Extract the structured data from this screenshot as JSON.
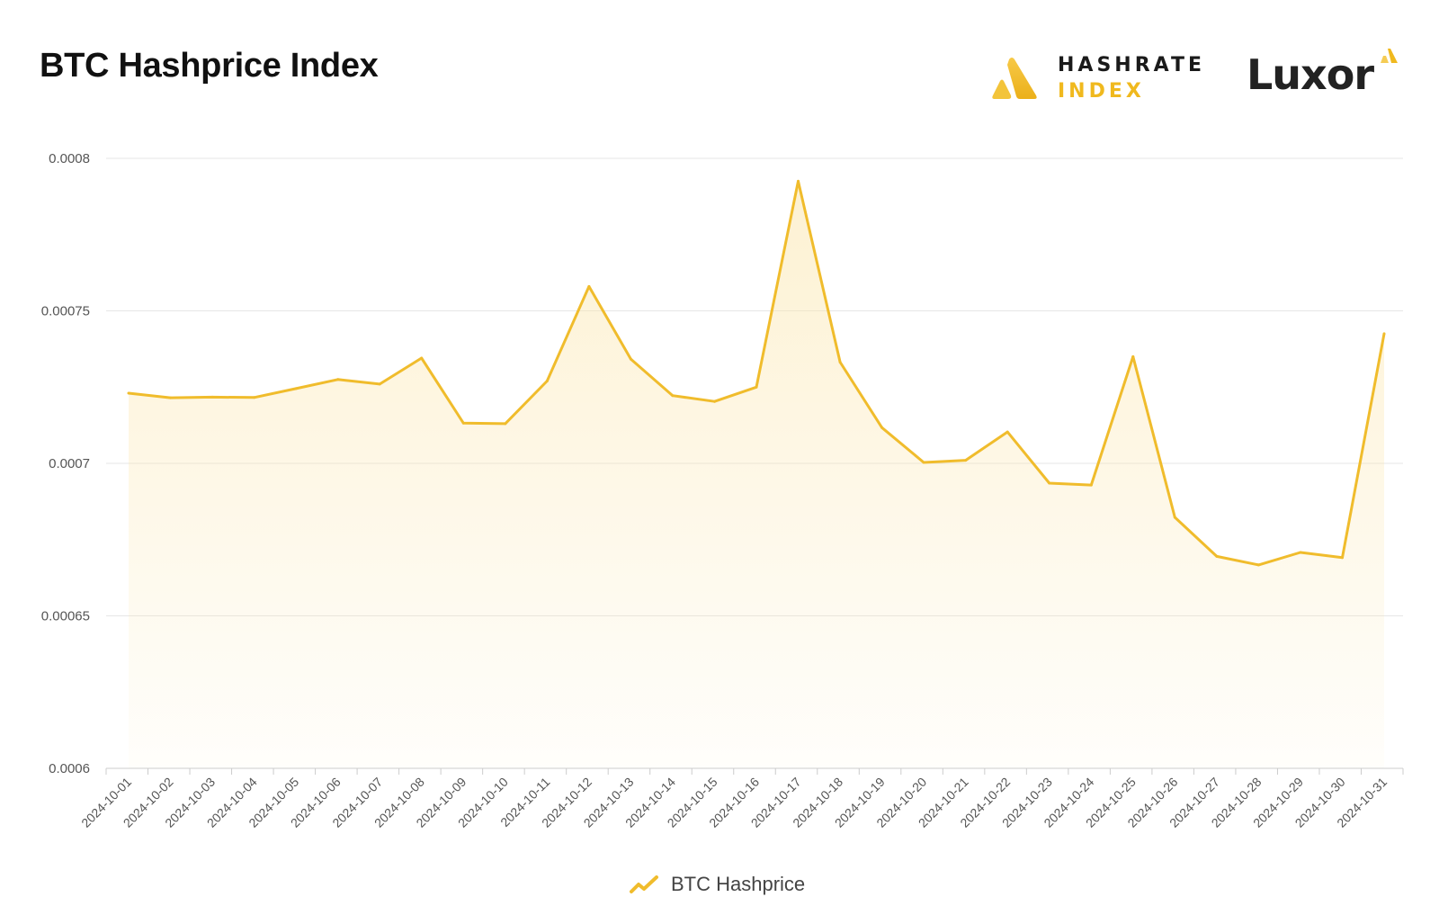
{
  "header": {
    "title": "BTC Hashprice Index"
  },
  "logos": {
    "hashrate_line1": "HASHRATE",
    "hashrate_line2": "INDEX",
    "luxor": "Luxor"
  },
  "colors": {
    "line": "#f0bc2c",
    "fill": "#fbe7b0",
    "grid": "#e6e6e6",
    "axis": "#cccccc",
    "tick_text": "#555555",
    "brand_gold": "#f0b91e"
  },
  "legend": {
    "icon": "trend-line-icon",
    "label": "BTC Hashprice"
  },
  "chart_data": {
    "type": "area",
    "title": "BTC Hashprice Index",
    "xlabel": "",
    "ylabel": "",
    "ylim": [
      0.0006,
      0.0008
    ],
    "yticks": [
      "0.0008",
      "0.00075",
      "0.0007",
      "0.00065",
      "0.0006"
    ],
    "ytick_values": [
      0.0008,
      0.00075,
      0.0007,
      0.00065,
      0.0006
    ],
    "grid": true,
    "legend_position": "bottom-center",
    "x": [
      "2024-10-01",
      "2024-10-02",
      "2024-10-03",
      "2024-10-04",
      "2024-10-05",
      "2024-10-06",
      "2024-10-07",
      "2024-10-08",
      "2024-10-09",
      "2024-10-10",
      "2024-10-11",
      "2024-10-12",
      "2024-10-13",
      "2024-10-14",
      "2024-10-15",
      "2024-10-16",
      "2024-10-17",
      "2024-10-18",
      "2024-10-19",
      "2024-10-20",
      "2024-10-21",
      "2024-10-22",
      "2024-10-23",
      "2024-10-24",
      "2024-10-25",
      "2024-10-26",
      "2024-10-27",
      "2024-10-28",
      "2024-10-29",
      "2024-10-30",
      "2024-10-31"
    ],
    "series": [
      {
        "name": "BTC Hashprice",
        "values": [
          0.000723,
          0.0007215,
          0.0007217,
          0.0007216,
          0.0007245,
          0.0007275,
          0.000726,
          0.0007345,
          0.0007132,
          0.000713,
          0.000727,
          0.000758,
          0.0007342,
          0.0007222,
          0.0007203,
          0.000725,
          0.0007925,
          0.0007332,
          0.0007117,
          0.0007003,
          0.000701,
          0.0007103,
          0.0006935,
          0.0006929,
          0.000735,
          0.0006823,
          0.0006695,
          0.0006667,
          0.0006708,
          0.0006691,
          0.0007425
        ]
      }
    ]
  }
}
